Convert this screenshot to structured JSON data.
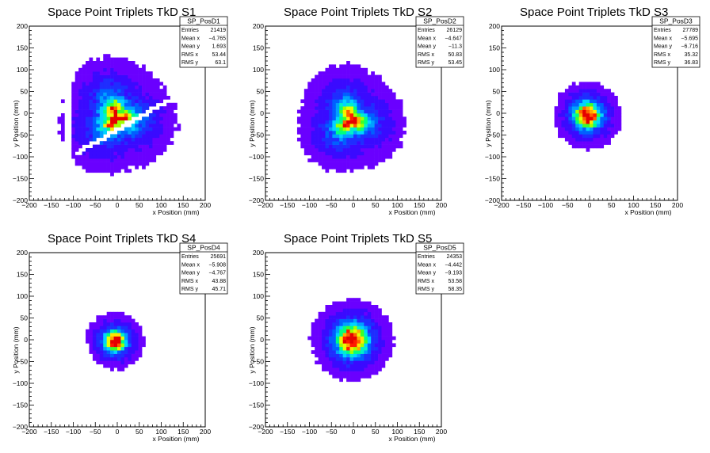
{
  "chart_data": [
    {
      "type": "heatmap",
      "title": "Space Point Triplets TkD S1",
      "xlabel": "x Position (mm)",
      "ylabel": "y Position (mm)",
      "xlim": [
        -200,
        200
      ],
      "ylim": [
        -200,
        200
      ],
      "x_ticks": [
        "−200",
        "−150",
        "−100",
        "−50",
        "0",
        "50",
        "100",
        "150",
        "200"
      ],
      "y_ticks": [
        "−200",
        "−150",
        "−100",
        "−50",
        "0",
        "50",
        "100",
        "150",
        "200"
      ],
      "stats": {
        "name": "SP_PosD1",
        "rows": [
          {
            "label": "Entries",
            "value": "21419"
          },
          {
            "label": "Mean x",
            "value": "−4.765"
          },
          {
            "label": "Mean y",
            "value": "1.693"
          },
          {
            "label": "RMS x",
            "value": "53.44"
          },
          {
            "label": "RMS y",
            "value": "63.1"
          }
        ]
      },
      "distribution": {
        "radius": 160,
        "peak": [
          -2,
          -8
        ],
        "core_width": 22,
        "halo_width": 60,
        "patterned": true,
        "gap_band_center": -38,
        "gap_band_width": 13,
        "gap_band_slope": 0.58
      }
    },
    {
      "type": "heatmap",
      "title": "Space Point Triplets TkD S2",
      "xlabel": "x Position (mm)",
      "ylabel": "y Position (mm)",
      "xlim": [
        -200,
        200
      ],
      "ylim": [
        -200,
        200
      ],
      "x_ticks": [
        "−200",
        "−150",
        "−100",
        "−50",
        "0",
        "50",
        "100",
        "150",
        "200"
      ],
      "y_ticks": [
        "−200",
        "−150",
        "−100",
        "−50",
        "0",
        "50",
        "100",
        "150",
        "200"
      ],
      "stats": {
        "name": "SP_PosD2",
        "rows": [
          {
            "label": "Entries",
            "value": "26129"
          },
          {
            "label": "Mean x",
            "value": "−4.647"
          },
          {
            "label": "Mean y",
            "value": "−11.3"
          },
          {
            "label": "RMS x",
            "value": "50.83"
          },
          {
            "label": "RMS y",
            "value": "53.45"
          }
        ]
      },
      "distribution": {
        "radius": 160,
        "peak": [
          -8,
          -15
        ],
        "core_width": 20,
        "halo_width": 55,
        "patterned": true
      }
    },
    {
      "type": "heatmap",
      "title": "Space Point Triplets TkD S3",
      "xlabel": "x Position (mm)",
      "ylabel": "y Position (mm)",
      "xlim": [
        -200,
        200
      ],
      "ylim": [
        -200,
        200
      ],
      "x_ticks": [
        "−200",
        "−150",
        "−100",
        "−50",
        "0",
        "50",
        "100",
        "150",
        "200"
      ],
      "y_ticks": [
        "−200",
        "−150",
        "−100",
        "−50",
        "0",
        "50",
        "100",
        "150",
        "200"
      ],
      "stats": {
        "name": "SP_PosD3",
        "rows": [
          {
            "label": "Entries",
            "value": "27789"
          },
          {
            "label": "Mean x",
            "value": "−5.695"
          },
          {
            "label": "Mean y",
            "value": "−6.716"
          },
          {
            "label": "RMS x",
            "value": "35.32"
          },
          {
            "label": "RMS y",
            "value": "36.83"
          }
        ]
      },
      "distribution": {
        "radius": 160,
        "peak": [
          -5,
          -5
        ],
        "core_width": 15,
        "halo_width": 33,
        "patterned": false
      }
    },
    {
      "type": "heatmap",
      "title": "Space Point Triplets TkD S4",
      "xlabel": "x Position (mm)",
      "ylabel": "y Position (mm)",
      "xlim": [
        -200,
        200
      ],
      "ylim": [
        -200,
        200
      ],
      "x_ticks": [
        "−200",
        "−150",
        "−100",
        "−50",
        "0",
        "50",
        "100",
        "150",
        "200"
      ],
      "y_ticks": [
        "−200",
        "−150",
        "−100",
        "−50",
        "0",
        "50",
        "100",
        "150",
        "200"
      ],
      "stats": {
        "name": "SP_PosD4",
        "rows": [
          {
            "label": "Entries",
            "value": "25691"
          },
          {
            "label": "Mean x",
            "value": "−5.908"
          },
          {
            "label": "Mean y",
            "value": "−4.767"
          },
          {
            "label": "RMS x",
            "value": "43.88"
          },
          {
            "label": "RMS y",
            "value": "45.71"
          }
        ]
      },
      "distribution": {
        "radius": 160,
        "peak": [
          -5,
          -3
        ],
        "core_width": 12,
        "halo_width": 28,
        "patterned": false
      }
    },
    {
      "type": "heatmap",
      "title": "Space Point Triplets TkD S5",
      "xlabel": "x Position (mm)",
      "ylabel": "y Position (mm)",
      "xlim": [
        -200,
        200
      ],
      "ylim": [
        -200,
        200
      ],
      "x_ticks": [
        "−200",
        "−150",
        "−100",
        "−50",
        "0",
        "50",
        "100",
        "150",
        "200"
      ],
      "y_ticks": [
        "−200",
        "−150",
        "−100",
        "−50",
        "0",
        "50",
        "100",
        "150",
        "200"
      ],
      "stats": {
        "name": "SP_PosD5",
        "rows": [
          {
            "label": "Entries",
            "value": "24353"
          },
          {
            "label": "Mean x",
            "value": "−4.442"
          },
          {
            "label": "Mean y",
            "value": "−9.193"
          },
          {
            "label": "RMS x",
            "value": "53.58"
          },
          {
            "label": "RMS y",
            "value": "58.35"
          }
        ]
      },
      "distribution": {
        "radius": 160,
        "peak": [
          -3,
          0
        ],
        "core_width": 18,
        "halo_width": 40,
        "patterned": false
      }
    }
  ],
  "colors": {
    "palette": [
      "#6a00ff",
      "#3a0aff",
      "#1f2dff",
      "#0060ff",
      "#00a0ff",
      "#00d4ff",
      "#00f0c8",
      "#00ff80",
      "#3cff28",
      "#a0ff00",
      "#e6ff00",
      "#ffe600",
      "#ffaa00",
      "#ff6000",
      "#ff1a00",
      "#e60000"
    ],
    "axis": "#000000",
    "background": "#ffffff"
  }
}
